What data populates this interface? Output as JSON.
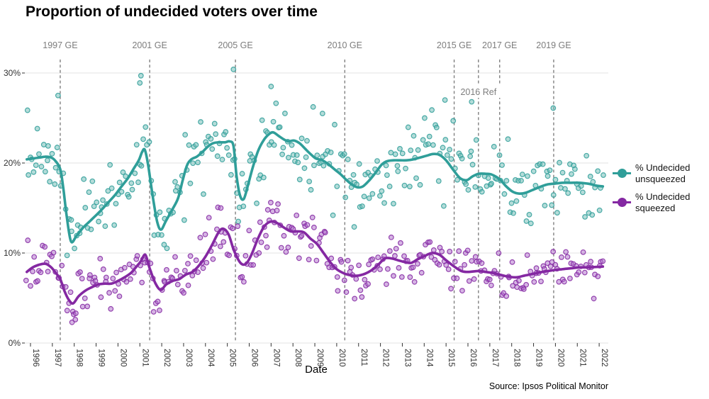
{
  "title": "Proportion of undecided voters over time",
  "source_note": "Source: Ipsos Political Monitor",
  "axes": {
    "x_label": "Date",
    "x_ticks": [
      "1996",
      "1997",
      "1998",
      "1999",
      "2000",
      "2001",
      "2002",
      "2003",
      "2004",
      "2005",
      "2006",
      "2007",
      "2008",
      "2009",
      "2010",
      "2011",
      "2012",
      "2013",
      "2014",
      "2015",
      "2016",
      "2017",
      "2018",
      "2019",
      "2020",
      "2021",
      "2022"
    ],
    "y_ticks": [
      "0%",
      "10%",
      "20%",
      "30%"
    ],
    "y_values": [
      0,
      10,
      20,
      30
    ]
  },
  "legend": {
    "items": [
      {
        "label": "% Undecided unsqueezed",
        "color": "#2f9e99"
      },
      {
        "label": "% Undecided squeezed",
        "color": "#8428a2"
      }
    ]
  },
  "events": [
    {
      "label": "1997 GE",
      "year": 1997.36,
      "inside": false
    },
    {
      "label": "2001 GE",
      "year": 2001.45,
      "inside": false
    },
    {
      "label": "2005 GE",
      "year": 2005.37,
      "inside": false
    },
    {
      "label": "2010 GE",
      "year": 2010.37,
      "inside": false
    },
    {
      "label": "2015 GE",
      "year": 2015.37,
      "inside": false
    },
    {
      "label": "2016 Ref",
      "year": 2016.48,
      "inside": true
    },
    {
      "label": "2017 GE",
      "year": 2017.45,
      "inside": false
    },
    {
      "label": "2019 GE",
      "year": 2019.92,
      "inside": false
    }
  ],
  "chart_data": {
    "type": "scatter",
    "title": "Proportion of undecided voters over time",
    "xlabel": "Date",
    "ylabel": "",
    "x_range": [
      1995.83,
      2022.2
    ],
    "ylim": [
      0,
      31
    ],
    "grid": true,
    "legend_position": "right",
    "series": [
      {
        "name": "% Undecided unsqueezed",
        "line_color": "#2f9e99",
        "point_fill": "#6ab9b4",
        "scatter_sd": 2.1,
        "seed": 7,
        "smooth": [
          [
            1995.83,
            20.4
          ],
          [
            1996.1,
            20.5
          ],
          [
            1996.4,
            20.6
          ],
          [
            1996.7,
            20.7
          ],
          [
            1996.95,
            20.6
          ],
          [
            1997.15,
            20.2
          ],
          [
            1997.36,
            19.3
          ],
          [
            1997.5,
            17.2
          ],
          [
            1997.65,
            14.2
          ],
          [
            1997.85,
            11.3
          ],
          [
            1998.1,
            11.9
          ],
          [
            1998.4,
            12.8
          ],
          [
            1998.7,
            13.5
          ],
          [
            1999.0,
            14.2
          ],
          [
            1999.25,
            14.8
          ],
          [
            1999.55,
            15.6
          ],
          [
            1999.85,
            16.4
          ],
          [
            2000.1,
            17.2
          ],
          [
            2000.45,
            18.3
          ],
          [
            2000.7,
            19.3
          ],
          [
            2000.95,
            20.3
          ],
          [
            2001.1,
            21.2
          ],
          [
            2001.22,
            21.5
          ],
          [
            2001.35,
            20.2
          ],
          [
            2001.47,
            18.3
          ],
          [
            2001.62,
            15.8
          ],
          [
            2001.8,
            13.4
          ],
          [
            2001.97,
            12.6
          ],
          [
            2002.2,
            13.6
          ],
          [
            2002.5,
            14.9
          ],
          [
            2002.75,
            16.1
          ],
          [
            2002.95,
            18.0
          ],
          [
            2003.15,
            19.7
          ],
          [
            2003.35,
            20.4
          ],
          [
            2003.6,
            20.7
          ],
          [
            2003.85,
            21.2
          ],
          [
            2004.1,
            21.8
          ],
          [
            2004.35,
            22.2
          ],
          [
            2004.6,
            22.3
          ],
          [
            2004.9,
            22.3
          ],
          [
            2005.1,
            22.4
          ],
          [
            2005.28,
            21.9
          ],
          [
            2005.42,
            18.6
          ],
          [
            2005.58,
            16.4
          ],
          [
            2005.75,
            16.0
          ],
          [
            2005.95,
            17.6
          ],
          [
            2006.15,
            19.4
          ],
          [
            2006.4,
            21.3
          ],
          [
            2006.65,
            22.5
          ],
          [
            2006.9,
            23.2
          ],
          [
            2007.1,
            23.4
          ],
          [
            2007.35,
            23.0
          ],
          [
            2007.6,
            22.6
          ],
          [
            2007.8,
            22.4
          ],
          [
            2008.05,
            22.5
          ],
          [
            2008.3,
            22.2
          ],
          [
            2008.55,
            21.6
          ],
          [
            2008.8,
            21.0
          ],
          [
            2009.05,
            20.5
          ],
          [
            2009.35,
            20.3
          ],
          [
            2009.65,
            19.8
          ],
          [
            2009.95,
            19.2
          ],
          [
            2010.2,
            18.7
          ],
          [
            2010.45,
            18.1
          ],
          [
            2010.7,
            17.6
          ],
          [
            2010.95,
            17.3
          ],
          [
            2011.2,
            17.4
          ],
          [
            2011.5,
            18.1
          ],
          [
            2011.8,
            19.0
          ],
          [
            2012.05,
            19.8
          ],
          [
            2012.3,
            20.2
          ],
          [
            2012.6,
            20.3
          ],
          [
            2012.9,
            20.3
          ],
          [
            2013.2,
            20.3
          ],
          [
            2013.5,
            20.4
          ],
          [
            2013.8,
            20.6
          ],
          [
            2014.1,
            20.8
          ],
          [
            2014.4,
            21.0
          ],
          [
            2014.7,
            20.9
          ],
          [
            2015.0,
            20.3
          ],
          [
            2015.37,
            19.1
          ],
          [
            2015.65,
            18.3
          ],
          [
            2015.95,
            18.1
          ],
          [
            2016.2,
            18.5
          ],
          [
            2016.48,
            18.8
          ],
          [
            2016.8,
            18.8
          ],
          [
            2017.1,
            18.7
          ],
          [
            2017.45,
            18.2
          ],
          [
            2017.75,
            17.4
          ],
          [
            2018.05,
            16.8
          ],
          [
            2018.35,
            16.6
          ],
          [
            2018.65,
            16.7
          ],
          [
            2018.95,
            17.0
          ],
          [
            2019.25,
            17.3
          ],
          [
            2019.6,
            17.6
          ],
          [
            2019.92,
            17.7
          ],
          [
            2020.3,
            17.8
          ],
          [
            2020.7,
            17.8
          ],
          [
            2021.1,
            17.8
          ],
          [
            2021.5,
            17.7
          ],
          [
            2021.85,
            17.5
          ],
          [
            2022.17,
            17.4
          ]
        ],
        "outlier_points": [
          [
            1997.26,
            27.5
          ],
          [
            2001.0,
            28.9
          ],
          [
            2001.05,
            29.7
          ],
          [
            2005.28,
            30.4
          ],
          [
            2007.0,
            28.5
          ],
          [
            2009.35,
            25.5
          ],
          [
            2010.8,
            12.9
          ],
          [
            2014.95,
            27.0
          ],
          [
            2016.17,
            26.8
          ],
          [
            2019.9,
            26.1
          ]
        ]
      },
      {
        "name": "% Undecided squeezed",
        "line_color": "#8428a2",
        "point_fill": "#ad6cc9",
        "scatter_sd": 1.4,
        "seed": 13,
        "smooth": [
          [
            1995.83,
            7.9
          ],
          [
            1996.1,
            8.4
          ],
          [
            1996.4,
            8.7
          ],
          [
            1996.7,
            8.8
          ],
          [
            1996.95,
            8.4
          ],
          [
            1997.15,
            7.8
          ],
          [
            1997.36,
            7.1
          ],
          [
            1997.55,
            5.8
          ],
          [
            1997.75,
            4.8
          ],
          [
            1997.95,
            4.4
          ],
          [
            1998.2,
            5.2
          ],
          [
            1998.5,
            5.8
          ],
          [
            1998.8,
            6.2
          ],
          [
            1999.1,
            6.5
          ],
          [
            1999.4,
            6.6
          ],
          [
            1999.7,
            6.6
          ],
          [
            2000.0,
            6.9
          ],
          [
            2000.3,
            7.3
          ],
          [
            2000.6,
            7.8
          ],
          [
            2000.85,
            8.5
          ],
          [
            2001.05,
            9.1
          ],
          [
            2001.25,
            9.8
          ],
          [
            2001.45,
            8.3
          ],
          [
            2001.7,
            6.7
          ],
          [
            2001.95,
            5.9
          ],
          [
            2002.2,
            6.5
          ],
          [
            2002.5,
            6.9
          ],
          [
            2002.8,
            7.1
          ],
          [
            2003.1,
            7.6
          ],
          [
            2003.4,
            7.9
          ],
          [
            2003.7,
            8.6
          ],
          [
            2004.0,
            9.6
          ],
          [
            2004.3,
            10.9
          ],
          [
            2004.6,
            12.3
          ],
          [
            2004.8,
            12.7
          ],
          [
            2005.05,
            12.1
          ],
          [
            2005.3,
            10.3
          ],
          [
            2005.6,
            8.9
          ],
          [
            2005.85,
            8.8
          ],
          [
            2006.1,
            9.8
          ],
          [
            2006.4,
            11.6
          ],
          [
            2006.7,
            13.0
          ],
          [
            2007.0,
            13.5
          ],
          [
            2007.3,
            13.3
          ],
          [
            2007.6,
            12.8
          ],
          [
            2007.9,
            12.4
          ],
          [
            2008.2,
            12.4
          ],
          [
            2008.5,
            12.3
          ],
          [
            2008.8,
            11.6
          ],
          [
            2009.1,
            11.0
          ],
          [
            2009.4,
            10.0
          ],
          [
            2009.7,
            9.0
          ],
          [
            2010.0,
            8.2
          ],
          [
            2010.37,
            7.7
          ],
          [
            2010.7,
            7.5
          ],
          [
            2011.0,
            7.5
          ],
          [
            2011.3,
            7.7
          ],
          [
            2011.6,
            8.1
          ],
          [
            2011.9,
            8.7
          ],
          [
            2012.2,
            9.4
          ],
          [
            2012.5,
            9.4
          ],
          [
            2012.8,
            9.2
          ],
          [
            2013.1,
            9.0
          ],
          [
            2013.4,
            8.9
          ],
          [
            2013.7,
            9.3
          ],
          [
            2014.05,
            9.7
          ],
          [
            2014.35,
            10.0
          ],
          [
            2014.7,
            9.8
          ],
          [
            2015.0,
            9.2
          ],
          [
            2015.37,
            8.5
          ],
          [
            2015.7,
            8.0
          ],
          [
            2016.0,
            7.9
          ],
          [
            2016.48,
            8.0
          ],
          [
            2016.8,
            7.9
          ],
          [
            2017.1,
            7.8
          ],
          [
            2017.45,
            7.6
          ],
          [
            2017.8,
            7.4
          ],
          [
            2018.2,
            7.3
          ],
          [
            2018.6,
            7.5
          ],
          [
            2019.0,
            7.7
          ],
          [
            2019.4,
            7.9
          ],
          [
            2019.92,
            8.1
          ],
          [
            2020.3,
            8.2
          ],
          [
            2020.7,
            8.3
          ],
          [
            2021.1,
            8.4
          ],
          [
            2021.5,
            8.4
          ],
          [
            2022.17,
            8.5
          ]
        ],
        "outlier_points": [
          [
            1997.9,
            2.3
          ],
          [
            1998.05,
            2.6
          ],
          [
            2004.7,
            15.0
          ],
          [
            2006.85,
            14.8
          ]
        ]
      }
    ]
  },
  "style": {
    "grid_color": "#e3e3e3",
    "event_line_color": "#808080",
    "event_label_color": "#7d7d7d",
    "tick_label_color": "#333333"
  }
}
